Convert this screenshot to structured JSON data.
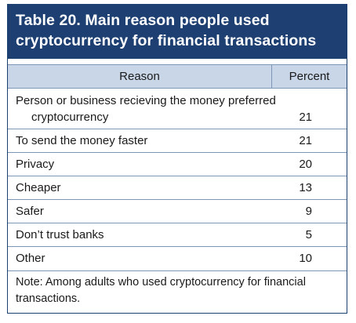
{
  "table": {
    "title_line1": "Table 20. Main reason people used",
    "title_line2": "cryptocurrency for financial transactions",
    "columns": [
      "Reason",
      "Percent"
    ],
    "rows": [
      {
        "reason_line1": "Person or business recieving the money preferred",
        "reason_line2": "cryptocurrency",
        "percent": "21"
      },
      {
        "reason": "To send the money faster",
        "percent": "21"
      },
      {
        "reason": "Privacy",
        "percent": "20"
      },
      {
        "reason": "Cheaper",
        "percent": "13"
      },
      {
        "reason": "Safer",
        "percent": "9"
      },
      {
        "reason": "Don’t trust banks",
        "percent": "5"
      },
      {
        "reason": "Other",
        "percent": "10"
      }
    ],
    "note_line1": "Note: Among adults who used cryptocurrency for financial",
    "note_line2": "transactions."
  },
  "colors": {
    "title_background": "#1d3f72",
    "header_background": "#c8d6e8",
    "rule": "#7d96b8"
  }
}
